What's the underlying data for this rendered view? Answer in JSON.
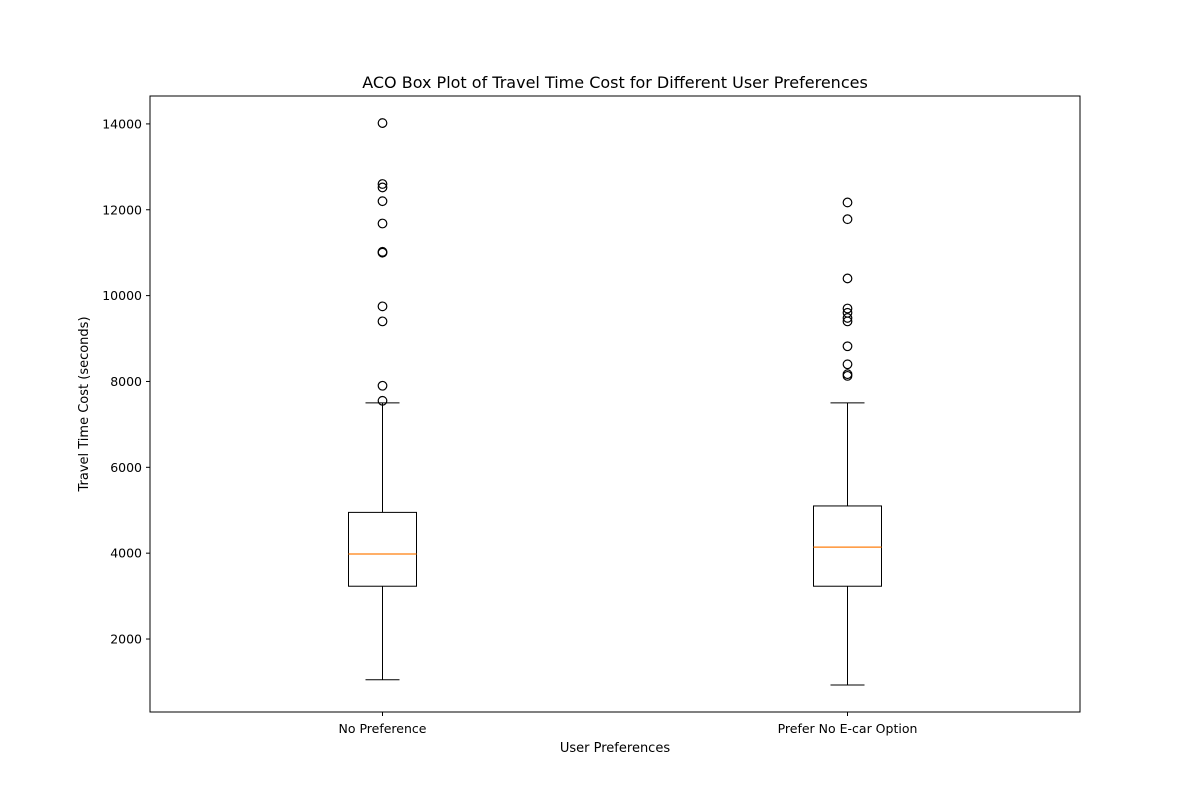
{
  "chart_data": {
    "type": "box",
    "title": "ACO Box Plot of Travel Time Cost for Different User Preferences",
    "xlabel": "User Preferences",
    "ylabel": "Travel Time Cost (seconds)",
    "ylim": [
      300,
      14650
    ],
    "yticks": [
      2000,
      4000,
      6000,
      8000,
      10000,
      12000,
      14000
    ],
    "grid": false,
    "categories": [
      "No Preference",
      "Prefer No E-car Option"
    ],
    "boxes": [
      {
        "category": "No Preference",
        "whisker_low": 1050,
        "q1": 3230,
        "median": 3980,
        "q3": 4950,
        "whisker_high": 7500,
        "outliers": [
          7550,
          7900,
          9400,
          9750,
          11000,
          11020,
          11680,
          12200,
          12520,
          12600,
          14020
        ]
      },
      {
        "category": "Prefer No E-car Option",
        "whisker_low": 930,
        "q1": 3230,
        "median": 4140,
        "q3": 5100,
        "whisker_high": 7500,
        "outliers": [
          8130,
          8170,
          8400,
          8820,
          9400,
          9480,
          9600,
          9700,
          10400,
          11780,
          12170
        ]
      }
    ],
    "colors": {
      "box": "#000000",
      "median": "#ff7f0e",
      "outlier": "#000000"
    }
  }
}
